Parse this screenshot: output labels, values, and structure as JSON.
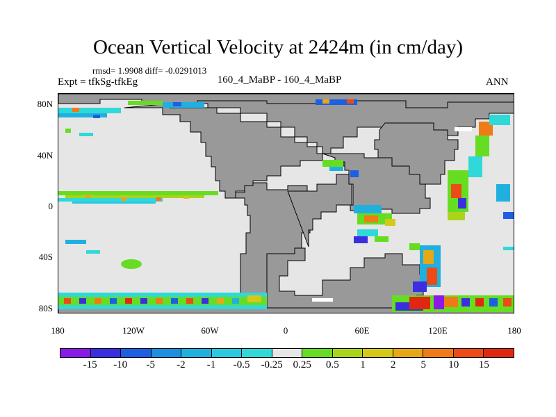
{
  "header": {
    "title": "Ocean Vertical Velocity at 2424m (in cm/day)",
    "stats": "rmsd= 1.9908 diff= -0.0291013",
    "expt": "Expt = tfkSg-tfkEg",
    "subtitle": "160_4_MaBP - 160_4_MaBP",
    "season": "ANN"
  },
  "map": {
    "lat_labels": [
      "80N",
      "40N",
      "0",
      "40S",
      "80S"
    ],
    "lon_labels": [
      "180",
      "120W",
      "60W",
      "0",
      "60E",
      "120E",
      "180"
    ],
    "colors": {
      "land": "#999999",
      "ocean_neutral": "#e6e6e6",
      "coastline": "#000000"
    }
  },
  "colorbar": {
    "labels": [
      "-15",
      "-10",
      "-5",
      "-2",
      "-1",
      "-0.5",
      "-0.25",
      "0.25",
      "0.5",
      "1",
      "2",
      "5",
      "10",
      "15"
    ],
    "colors": [
      "#8b19e8",
      "#3a2fe0",
      "#1d5fe2",
      "#1d8fe0",
      "#20b0e0",
      "#2cc8e0",
      "#30d8d8",
      "#e6e6e6",
      "#66dd22",
      "#aad41b",
      "#d4c81a",
      "#e6a818",
      "#ee7a18",
      "#ee4a16",
      "#e02810"
    ]
  }
}
